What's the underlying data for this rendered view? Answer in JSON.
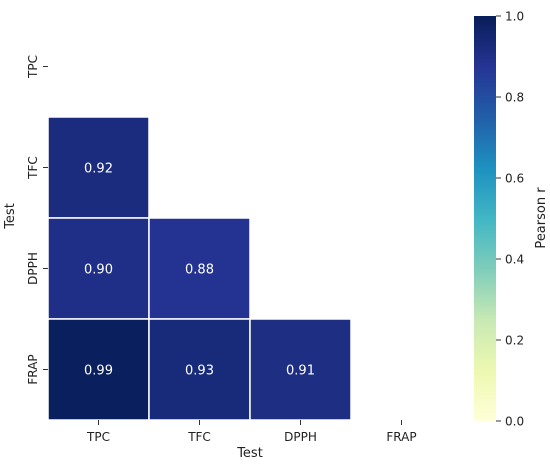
{
  "chart_data": {
    "type": "heatmap",
    "title": "",
    "xlabel": "Test",
    "ylabel": "Test",
    "x_categories": [
      "TPC",
      "TFC",
      "DPPH",
      "FRAP"
    ],
    "y_categories": [
      "TPC",
      "TFC",
      "DPPH",
      "FRAP"
    ],
    "mask": "upper triangle and diagonal hidden",
    "cells": [
      {
        "row": "TFC",
        "col": "TPC",
        "value": 0.92,
        "label": "0.92"
      },
      {
        "row": "DPPH",
        "col": "TPC",
        "value": 0.9,
        "label": "0.90"
      },
      {
        "row": "DPPH",
        "col": "TFC",
        "value": 0.88,
        "label": "0.88"
      },
      {
        "row": "FRAP",
        "col": "TPC",
        "value": 0.99,
        "label": "0.99"
      },
      {
        "row": "FRAP",
        "col": "TFC",
        "value": 0.93,
        "label": "0.93"
      },
      {
        "row": "FRAP",
        "col": "DPPH",
        "value": 0.91,
        "label": "0.91"
      }
    ],
    "colorbar": {
      "label": "Pearson r",
      "range": [
        0.0,
        1.0
      ],
      "ticks": [
        "0.0",
        "0.2",
        "0.4",
        "0.6",
        "0.8",
        "1.0"
      ],
      "colormap": "YlGnBu"
    }
  }
}
